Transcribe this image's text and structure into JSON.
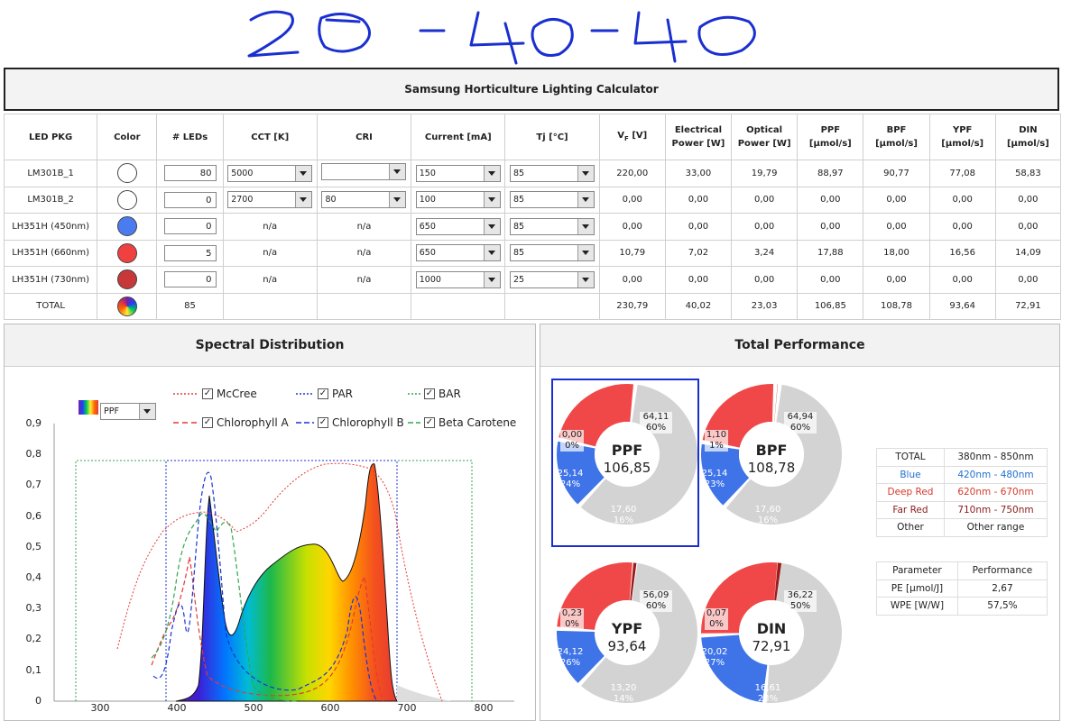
{
  "handwriting": "20-40-40",
  "title": "Samsung Horticulture Lighting Calculator",
  "columns": [
    "LED PKG",
    "Color",
    "# LEDs",
    "CCT [K]",
    "CRI",
    "Current [mA]",
    "Tj [°C]",
    "Vf [V]",
    "Electrical Power [W]",
    "Optical Power [W]",
    "PPF [μmol/s]",
    "BPF [μmol/s]",
    "YPF [μmol/s]",
    "DIN [μmol/s]"
  ],
  "column_vf": "V",
  "column_vf_sub": "F",
  "column_vf_unit": "[V]",
  "rows": [
    {
      "pkg": "LM301B_1",
      "color": "#ffffff",
      "leds": "80",
      "cct": "5000",
      "cri": "",
      "current": "150",
      "tj": "85",
      "vf": "220,00",
      "elec": "33,00",
      "opt": "19,79",
      "ppf": "88,97",
      "bpf": "90,77",
      "ypf": "77,08",
      "din": "58,83"
    },
    {
      "pkg": "LM301B_2",
      "color": "#ffffff",
      "leds": "0",
      "cct": "2700",
      "cri": "80",
      "current": "100",
      "tj": "85",
      "vf": "0,00",
      "elec": "0,00",
      "opt": "0,00",
      "ppf": "0,00",
      "bpf": "0,00",
      "ypf": "0,00",
      "din": "0,00"
    },
    {
      "pkg": "LH351H (450nm)",
      "color": "#4a7cf0",
      "leds": "0",
      "cct": "n/a",
      "cri": "n/a",
      "current": "650",
      "tj": "85",
      "vf": "0,00",
      "elec": "0,00",
      "opt": "0,00",
      "ppf": "0,00",
      "bpf": "0,00",
      "ypf": "0,00",
      "din": "0,00"
    },
    {
      "pkg": "LH351H (660nm)",
      "color": "#f04040",
      "leds": "5",
      "cct": "n/a",
      "cri": "n/a",
      "current": "650",
      "tj": "85",
      "vf": "10,79",
      "elec": "7,02",
      "opt": "3,24",
      "ppf": "17,88",
      "bpf": "18,00",
      "ypf": "16,56",
      "din": "14,09"
    },
    {
      "pkg": "LH351H (730nm)",
      "color": "#c83838",
      "leds": "0",
      "cct": "n/a",
      "cri": "n/a",
      "current": "1000",
      "tj": "25",
      "vf": "0,00",
      "elec": "0,00",
      "opt": "0,00",
      "ppf": "0,00",
      "bpf": "0,00",
      "ypf": "0,00",
      "din": "0,00"
    }
  ],
  "total": {
    "pkg": "TOTAL",
    "leds": "85",
    "vf": "230,79",
    "elec": "40,02",
    "opt": "23,03",
    "ppf": "106,85",
    "bpf": "108,78",
    "ypf": "93,64",
    "din": "72,91"
  },
  "spectral": {
    "title": "Spectral Distribution",
    "selector": "PPF",
    "legend": [
      "McCree",
      "PAR",
      "BAR",
      "Chlorophyll A",
      "Chlorophyll B",
      "Beta Carotene"
    ],
    "legend_colors": [
      "#e53935",
      "#1a33d6",
      "#31a84b",
      "#e53935",
      "#1a33d6",
      "#31a84b"
    ],
    "yticks": [
      "0,9",
      "0,8",
      "0,7",
      "0,6",
      "0,5",
      "0,4",
      "0,3",
      "0,2",
      "0,1",
      "0"
    ],
    "xticks": [
      "300",
      "400",
      "500",
      "600",
      "700",
      "800"
    ]
  },
  "performance": {
    "title": "Total Performance",
    "donuts": [
      {
        "name": "PPF",
        "value": "106,85",
        "other": "64,11",
        "other_pct": "60%",
        "far": "0,00",
        "far_pct": "0%",
        "deep": "25,14",
        "deep_pct": "24%",
        "blue": "17,60",
        "blue_pct": "16%"
      },
      {
        "name": "BPF",
        "value": "108,78",
        "other": "64,94",
        "other_pct": "60%",
        "far": "1,10",
        "far_pct": "1%",
        "deep": "25,14",
        "deep_pct": "23%",
        "blue": "17,60",
        "blue_pct": "16%"
      },
      {
        "name": "YPF",
        "value": "93,64",
        "other": "56,09",
        "other_pct": "60%",
        "far": "0,23",
        "far_pct": "0%",
        "deep": "24,12",
        "deep_pct": "26%",
        "blue": "13,20",
        "blue_pct": "14%"
      },
      {
        "name": "DIN",
        "value": "72,91",
        "other": "36,22",
        "other_pct": "50%",
        "far": "0,07",
        "far_pct": "0%",
        "deep": "20,02",
        "deep_pct": "27%",
        "blue": "16,61",
        "blue_pct": "23%"
      }
    ],
    "ranges": [
      {
        "label": "TOTAL",
        "range": "380nm - 850nm",
        "color": "#222"
      },
      {
        "label": "Blue",
        "range": "420nm - 480nm",
        "color": "#1f6fd1"
      },
      {
        "label": "Deep Red",
        "range": "620nm - 670nm",
        "color": "#d43a2a"
      },
      {
        "label": "Far Red",
        "range": "710nm - 750nm",
        "color": "#8b1a1a"
      },
      {
        "label": "Other",
        "range": "Other range",
        "color": "#222"
      }
    ],
    "params_header": [
      "Parameter",
      "Performance"
    ],
    "params": [
      {
        "label": "PE [μmol/J]",
        "value": "2,67"
      },
      {
        "label": "WPE [W/W]",
        "value": "57,5%"
      }
    ]
  }
}
